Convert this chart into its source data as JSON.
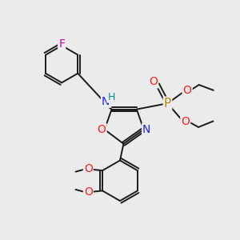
{
  "bg_color": "#ebebeb",
  "bond_color": "#1a1a1a",
  "atoms": {
    "F": {
      "color": "#cc00cc"
    },
    "N": {
      "color": "#2020ff"
    },
    "O": {
      "color": "#ff2020"
    },
    "P": {
      "color": "#b8860b"
    },
    "H": {
      "color": "#009090"
    }
  },
  "lw": 1.4,
  "dbo": 0.007
}
